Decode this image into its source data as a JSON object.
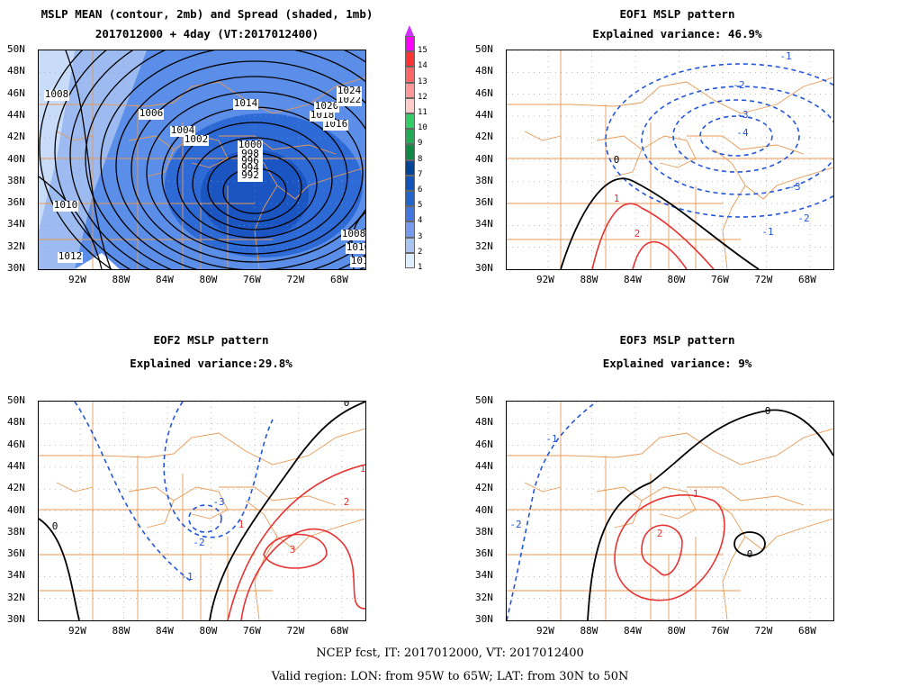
{
  "panels": [
    {
      "id": "mean",
      "title1": "MSLP MEAN (contour, 2mb) and Spread (shaded, 1mb)",
      "title2": "2017012000 + 4day (VT:2017012400)",
      "contour_labels": [
        "1008",
        "1006",
        "1004",
        "1002",
        "1000",
        "998",
        "996",
        "994",
        "992",
        "1010",
        "1012",
        "1014",
        "1016",
        "1018",
        "1020",
        "1022",
        "1024",
        "1008",
        "1010",
        "1012"
      ]
    },
    {
      "id": "eof1",
      "title1": "EOF1 MSLP pattern",
      "title2": "Explained variance: 46.9%",
      "contour_labels": [
        "-1",
        "-2",
        "-3",
        "-4",
        "-3",
        "-2",
        "-1",
        "0",
        "1",
        "2"
      ]
    },
    {
      "id": "eof2",
      "title1": "EOF2 MSLP pattern",
      "title2": "Explained variance:29.8%",
      "contour_labels": [
        "0",
        "-3",
        "-2",
        "-1",
        "0",
        "1",
        "2",
        "3",
        "1"
      ]
    },
    {
      "id": "eof3",
      "title1": "EOF3 MSLP pattern",
      "title2": "Explained variance: 9%",
      "contour_labels": [
        "0",
        "-1",
        "1",
        "2",
        "-2",
        "0"
      ]
    }
  ],
  "axes": {
    "lat_labels": [
      "50N",
      "48N",
      "46N",
      "44N",
      "42N",
      "40N",
      "38N",
      "36N",
      "34N",
      "32N",
      "30N"
    ],
    "lon_labels": [
      "92W",
      "88W",
      "84W",
      "80W",
      "76W",
      "72W",
      "68W"
    ]
  },
  "colorbar": {
    "labels": [
      "15",
      "14",
      "13",
      "12",
      "11",
      "10",
      "9",
      "8",
      "7",
      "6",
      "5",
      "4",
      "3",
      "2",
      "1"
    ],
    "colors": [
      "#cc33ff",
      "#ff00ff",
      "#ff3333",
      "#ff6666",
      "#ff9999",
      "#ffcccc",
      "#33cc66",
      "#22aa55",
      "#118844",
      "#004499",
      "#1155bb",
      "#2266cc",
      "#4477dd",
      "#7799ee",
      "#aac4f2",
      "#ddeeff"
    ]
  },
  "footer": {
    "line1": "NCEP fcst, IT: 2017012000, VT: 2017012400",
    "line2": "Valid region: LON: from 95W to 65W; LAT: from 30N to 50N"
  },
  "colors": {
    "map_lines": "#e89a55",
    "positive": "#e83333",
    "negative": "#2255dd",
    "zero": "#000000"
  }
}
